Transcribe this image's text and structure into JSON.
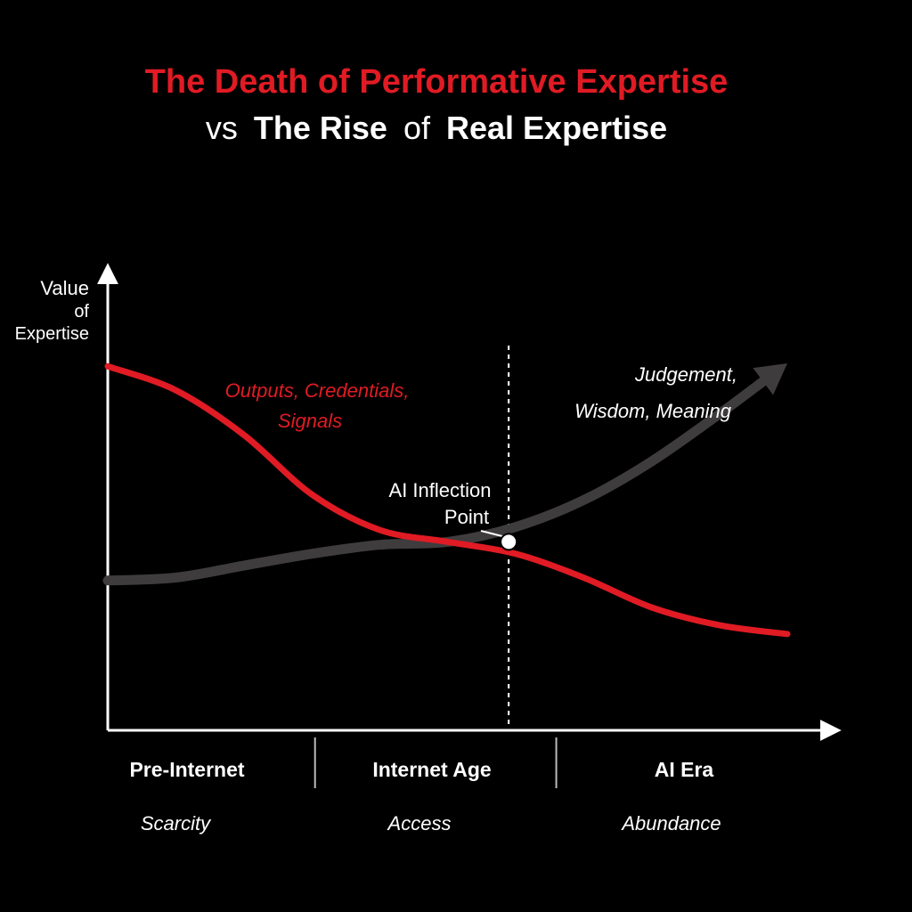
{
  "title": {
    "line1": "The Death of Performative Expertise",
    "line2_vs": "vs",
    "line2_rise": "The Rise",
    "line2_of1": "of",
    "line2_real": "Real Expertise"
  },
  "colors": {
    "background": "#000000",
    "red": "#e01b24",
    "grey": "#3f3c3e",
    "white": "#ffffff"
  },
  "chart_data": {
    "type": "line",
    "title": "The Death of Performative Expertise vs The Rise of Real Expertise",
    "ylabel_lines": [
      "Value",
      "of",
      "Expertise"
    ],
    "xlabel": "",
    "xlim": [
      0,
      100
    ],
    "ylim": [
      0,
      100
    ],
    "x": [
      0,
      10,
      20,
      30,
      40,
      50,
      60,
      70,
      80,
      90,
      100
    ],
    "series": [
      {
        "name": "Outputs, Credentials, Signals",
        "label_lines": [
          "Outputs, Credentials,",
          "Signals"
        ],
        "color": "#e01b24",
        "values": [
          99,
          91,
          76,
          56,
          44,
          40,
          36,
          28,
          18,
          12,
          9
        ]
      },
      {
        "name": "Judgement, Wisdom, Meaning",
        "label_lines": [
          "Judgement,",
          "Wisdom, Meaning"
        ],
        "color": "#3f3c3e",
        "values": [
          27,
          28,
          32,
          36,
          39,
          40,
          45,
          54,
          67,
          83,
          100
        ]
      }
    ],
    "inflection": {
      "label_lines": [
        "AI Inflection",
        "Point"
      ],
      "x": 59,
      "y": 40
    },
    "eras": [
      {
        "label": "Pre-Internet",
        "theme": "Scarcity"
      },
      {
        "label": "Internet Age",
        "theme": "Access"
      },
      {
        "label": "AI Era",
        "theme": "Abundance"
      }
    ],
    "era_boundaries": [
      30.5,
      66
    ]
  }
}
